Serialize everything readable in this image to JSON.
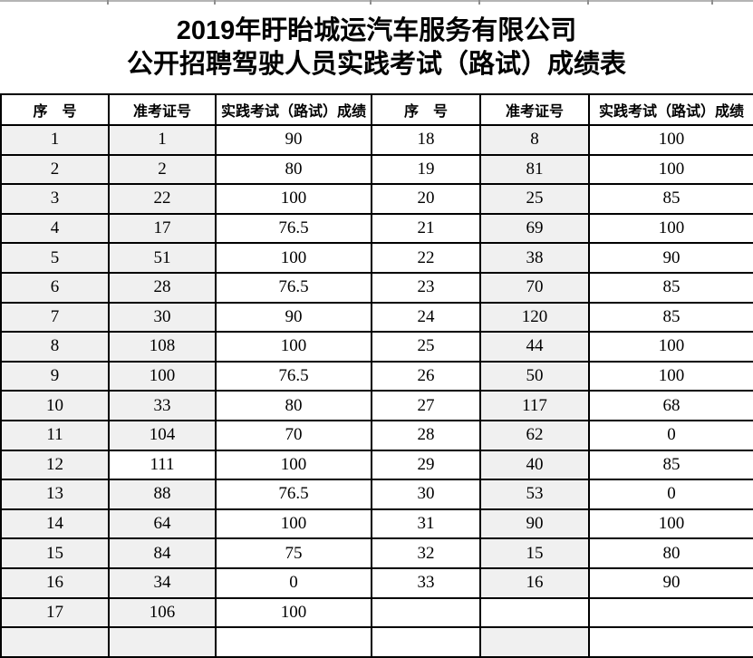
{
  "title": {
    "line1": "2019年盱眙城运汽车服务有限公司",
    "line2": "公开招聘驾驶人员实践考试（路试）成绩表"
  },
  "table": {
    "headers": [
      "序　号",
      "准考证号",
      "实践考试（路试）成绩",
      "序　号",
      "准考证号",
      "实践考试（路试）成绩"
    ],
    "default_shading": [
      true,
      true,
      false,
      false,
      true,
      false
    ],
    "rows": [
      {
        "cells": [
          "1",
          "1",
          "90",
          "18",
          "8",
          "100"
        ]
      },
      {
        "cells": [
          "2",
          "2",
          "80",
          "19",
          "81",
          "100"
        ]
      },
      {
        "cells": [
          "3",
          "22",
          "100",
          "20",
          "25",
          "85"
        ]
      },
      {
        "cells": [
          "4",
          "17",
          "76.5",
          "21",
          "69",
          "100"
        ]
      },
      {
        "cells": [
          "5",
          "51",
          "100",
          "22",
          "38",
          "90"
        ]
      },
      {
        "cells": [
          "6",
          "28",
          "76.5",
          "23",
          "70",
          "85"
        ]
      },
      {
        "cells": [
          "7",
          "30",
          "90",
          "24",
          "120",
          "85"
        ]
      },
      {
        "cells": [
          "8",
          "108",
          "100",
          "25",
          "44",
          "100"
        ]
      },
      {
        "cells": [
          "9",
          "100",
          "76.5",
          "26",
          "50",
          "100"
        ]
      },
      {
        "cells": [
          "10",
          "33",
          "80",
          "27",
          "117",
          "68"
        ]
      },
      {
        "cells": [
          "11",
          "104",
          "70",
          "28",
          "62",
          "0"
        ]
      },
      {
        "cells": [
          "12",
          "111",
          "100",
          "29",
          "40",
          "85"
        ],
        "shaded": [
          true,
          false,
          false,
          false,
          true,
          false
        ]
      },
      {
        "cells": [
          "13",
          "88",
          "76.5",
          "30",
          "53",
          "0"
        ]
      },
      {
        "cells": [
          "14",
          "64",
          "100",
          "31",
          "90",
          "100"
        ]
      },
      {
        "cells": [
          "15",
          "84",
          "75",
          "32",
          "15",
          "80"
        ]
      },
      {
        "cells": [
          "16",
          "34",
          "0",
          "33",
          "16",
          "90"
        ]
      },
      {
        "cells": [
          "17",
          "106",
          "100",
          "",
          "",
          ""
        ],
        "shaded": [
          true,
          true,
          false,
          false,
          false,
          false
        ]
      },
      {
        "cells": [
          "",
          "",
          "",
          "",
          "",
          ""
        ]
      }
    ]
  },
  "colors": {
    "shaded_cell_bg": "#f0f0f0",
    "table_border": "#000000",
    "text": "#000000",
    "top_gridline": "#b4b4b4",
    "top_gridline_tick": "#8f8f8f"
  }
}
